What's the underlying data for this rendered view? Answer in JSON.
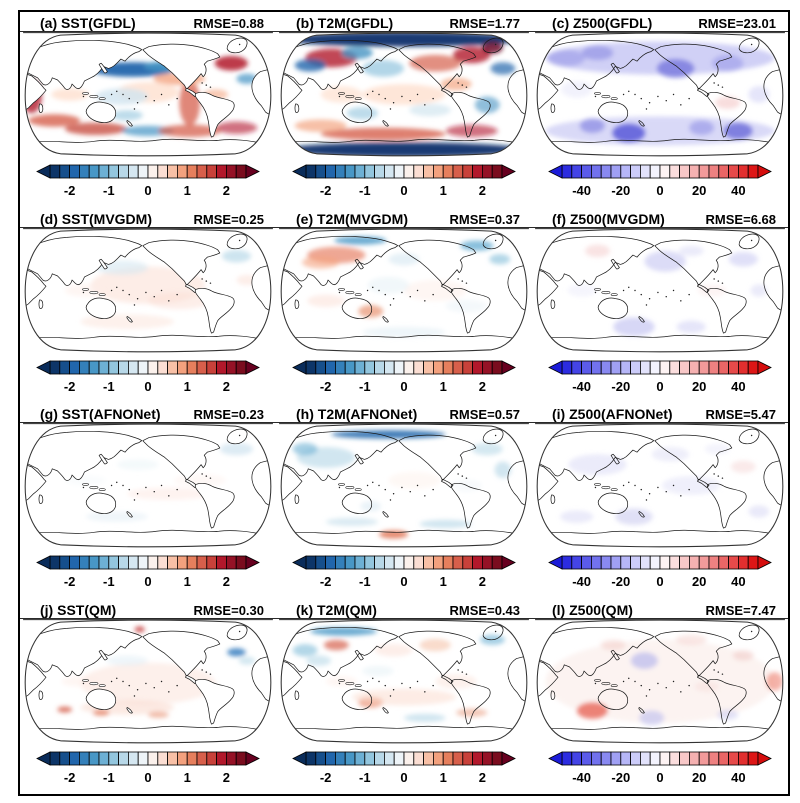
{
  "panels": [
    {
      "id": "a",
      "label": "(a) SST(GFDL)",
      "rmse_label": "RMSE=0.88",
      "variable": "SST",
      "model": "GFDL",
      "rmse": 0.88,
      "colorbar": "sst"
    },
    {
      "id": "b",
      "label": "(b) T2M(GFDL)",
      "rmse_label": "RMSE=1.77",
      "variable": "T2M",
      "model": "GFDL",
      "rmse": 1.77,
      "colorbar": "sst"
    },
    {
      "id": "c",
      "label": "(c) Z500(GFDL)",
      "rmse_label": "RMSE=23.01",
      "variable": "Z500",
      "model": "GFDL",
      "rmse": 23.01,
      "colorbar": "z500"
    },
    {
      "id": "d",
      "label": "(d) SST(MVGDM)",
      "rmse_label": "RMSE=0.25",
      "variable": "SST",
      "model": "MVGDM",
      "rmse": 0.25,
      "colorbar": "sst"
    },
    {
      "id": "e",
      "label": "(e) T2M(MVGDM)",
      "rmse_label": "RMSE=0.37",
      "variable": "T2M",
      "model": "MVGDM",
      "rmse": 0.37,
      "colorbar": "sst"
    },
    {
      "id": "f",
      "label": "(f) Z500(MVGDM)",
      "rmse_label": "RMSE=6.68",
      "variable": "Z500",
      "model": "MVGDM",
      "rmse": 6.68,
      "colorbar": "z500"
    },
    {
      "id": "g",
      "label": "(g) SST(AFNONet)",
      "rmse_label": "RMSE=0.23",
      "variable": "SST",
      "model": "AFNONet",
      "rmse": 0.23,
      "colorbar": "sst"
    },
    {
      "id": "h",
      "label": "(h) T2M(AFNONet)",
      "rmse_label": "RMSE=0.57",
      "variable": "T2M",
      "model": "AFNONet",
      "rmse": 0.57,
      "colorbar": "sst"
    },
    {
      "id": "i",
      "label": "(i) Z500(AFNONet)",
      "rmse_label": "RMSE=5.47",
      "variable": "Z500",
      "model": "AFNONet",
      "rmse": 5.47,
      "colorbar": "z500"
    },
    {
      "id": "j",
      "label": "(j) SST(QM)",
      "rmse_label": "RMSE=0.30",
      "variable": "SST",
      "model": "QM",
      "rmse": 0.3,
      "colorbar": "sst"
    },
    {
      "id": "k",
      "label": "(k) T2M(QM)",
      "rmse_label": "RMSE=0.43",
      "variable": "T2M",
      "model": "QM",
      "rmse": 0.43,
      "colorbar": "sst"
    },
    {
      "id": "l",
      "label": "(l) Z500(QM)",
      "rmse_label": "RMSE=7.47",
      "variable": "Z500",
      "model": "QM",
      "rmse": 7.47,
      "colorbar": "z500"
    }
  ],
  "colorbars": {
    "sst": {
      "ticks": [
        "-2",
        "-1",
        "0",
        "1",
        "2"
      ],
      "tick_values": [
        -2,
        -1,
        0,
        1,
        2
      ],
      "range": [
        -2.5,
        2.5
      ],
      "n_cells": 20,
      "colors": [
        "#0d3568",
        "#164f8c",
        "#2166ac",
        "#3480ba",
        "#4897c6",
        "#6db0d4",
        "#93c6de",
        "#b8d8e8",
        "#d5e7f1",
        "#eef4f8",
        "#fbf1ec",
        "#fbded3",
        "#f8c0a6",
        "#f3a17e",
        "#e67f5d",
        "#d75f4b",
        "#c8413a",
        "#b2182b",
        "#951226",
        "#7a0c1e"
      ],
      "tip_left": "#0a2c5a",
      "tip_right": "#67001f"
    },
    "z500": {
      "ticks": [
        "-40",
        "-20",
        "0",
        "20",
        "40"
      ],
      "tick_values": [
        -40,
        -20,
        0,
        20,
        40
      ],
      "range": [
        -50,
        50
      ],
      "n_cells": 20,
      "colors": [
        "#2c2ce0",
        "#4444e6",
        "#5b5bea",
        "#7272ee",
        "#8989f1",
        "#a0a0f4",
        "#b6b6f7",
        "#ccccf9",
        "#e2e2fb",
        "#f3f3fd",
        "#fdf3f3",
        "#fbdede",
        "#f8c8c8",
        "#f5b1b1",
        "#f29a9a",
        "#ee8181",
        "#ea6666",
        "#e64a4a",
        "#e22f2f",
        "#dd1616"
      ],
      "tip_left": "#1b1bd8",
      "tip_right": "#d50d0d"
    }
  },
  "chart_data": {
    "type": "heatmap",
    "layout": "4 rows (models) x 3 columns (variables); each panel is a global anomaly/bias map with its own colorbar",
    "projection": "Robinson-style global map, Pacific-centered",
    "columns": [
      "SST",
      "T2M",
      "Z500"
    ],
    "rows": [
      "GFDL",
      "MVGDM",
      "AFNONet",
      "QM"
    ],
    "panels": [
      {
        "panel": "a",
        "variable": "SST",
        "model": "GFDL",
        "metric": "RMSE",
        "value": 0.88
      },
      {
        "panel": "b",
        "variable": "T2M",
        "model": "GFDL",
        "metric": "RMSE",
        "value": 1.77
      },
      {
        "panel": "c",
        "variable": "Z500",
        "model": "GFDL",
        "metric": "RMSE",
        "value": 23.01
      },
      {
        "panel": "d",
        "variable": "SST",
        "model": "MVGDM",
        "metric": "RMSE",
        "value": 0.25
      },
      {
        "panel": "e",
        "variable": "T2M",
        "model": "MVGDM",
        "metric": "RMSE",
        "value": 0.37
      },
      {
        "panel": "f",
        "variable": "Z500",
        "model": "MVGDM",
        "metric": "RMSE",
        "value": 6.68
      },
      {
        "panel": "g",
        "variable": "SST",
        "model": "AFNONet",
        "metric": "RMSE",
        "value": 0.23
      },
      {
        "panel": "h",
        "variable": "T2M",
        "model": "AFNONet",
        "metric": "RMSE",
        "value": 0.57
      },
      {
        "panel": "i",
        "variable": "Z500",
        "model": "AFNONet",
        "metric": "RMSE",
        "value": 5.47
      },
      {
        "panel": "j",
        "variable": "SST",
        "model": "QM",
        "metric": "RMSE",
        "value": 0.3
      },
      {
        "panel": "k",
        "variable": "T2M",
        "model": "QM",
        "metric": "RMSE",
        "value": 0.43
      },
      {
        "panel": "l",
        "variable": "Z500",
        "model": "QM",
        "metric": "RMSE",
        "value": 7.47
      }
    ],
    "colorbar_ticks": {
      "SST": [
        -2,
        -1,
        0,
        1,
        2
      ],
      "T2M": [
        -2,
        -1,
        0,
        1,
        2
      ],
      "Z500": [
        -40,
        -20,
        0,
        20,
        40
      ]
    },
    "notes": "Row 1 (GFDL) shows strong biases; rows 2-4 (MVGDM, AFNONet, QM corrections) show much weaker anomalies. SST/T2M use a dark-blue to dark-red diverging scale; Z500 uses a bright blue-white-red scale."
  }
}
